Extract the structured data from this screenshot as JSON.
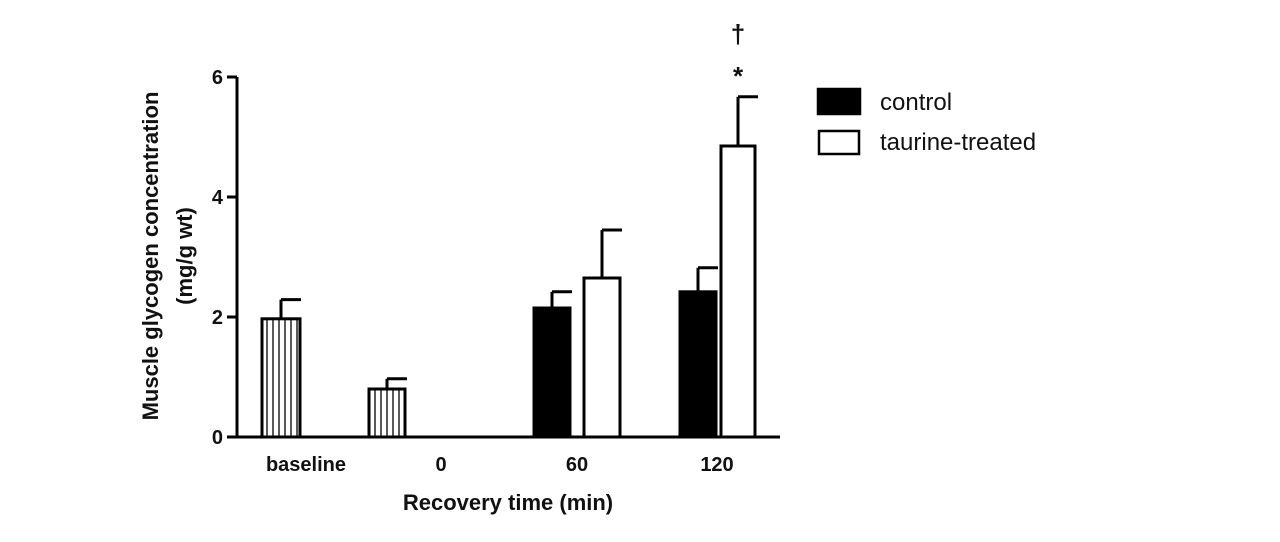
{
  "chart_data": {
    "type": "bar",
    "categories": [
      "baseline",
      "0",
      "60",
      "120"
    ],
    "series": [
      {
        "name": "",
        "style": "hatched",
        "values": [
          1.97,
          0.8,
          null,
          null
        ],
        "errors": [
          0.32,
          0.17,
          null,
          null
        ]
      },
      {
        "name": "control",
        "style": "filled",
        "values": [
          null,
          null,
          2.15,
          2.42
        ],
        "errors": [
          null,
          null,
          0.27,
          0.4
        ]
      },
      {
        "name": "taurine-treated",
        "style": "open",
        "values": [
          null,
          null,
          2.65,
          4.85
        ],
        "errors": [
          null,
          null,
          0.8,
          0.82
        ]
      }
    ],
    "yticks": [
      0,
      2,
      4,
      6
    ],
    "ylim": [
      0,
      6
    ],
    "xlabel": "Recovery time (min)",
    "ylabel_line1": "Muscle glycogen concentration",
    "ylabel_line2": "(mg/g wt)",
    "annotations": [
      {
        "text": "*",
        "category": "120",
        "series": "taurine-treated"
      },
      {
        "text": "†",
        "category": "120",
        "series": "taurine-treated"
      }
    ],
    "legend": {
      "placement": "right",
      "entries": [
        "control",
        "taurine-treated"
      ]
    },
    "grid": false,
    "colors": {
      "filled": "#000000",
      "open": "#ffffff",
      "stroke": "#000000"
    }
  }
}
